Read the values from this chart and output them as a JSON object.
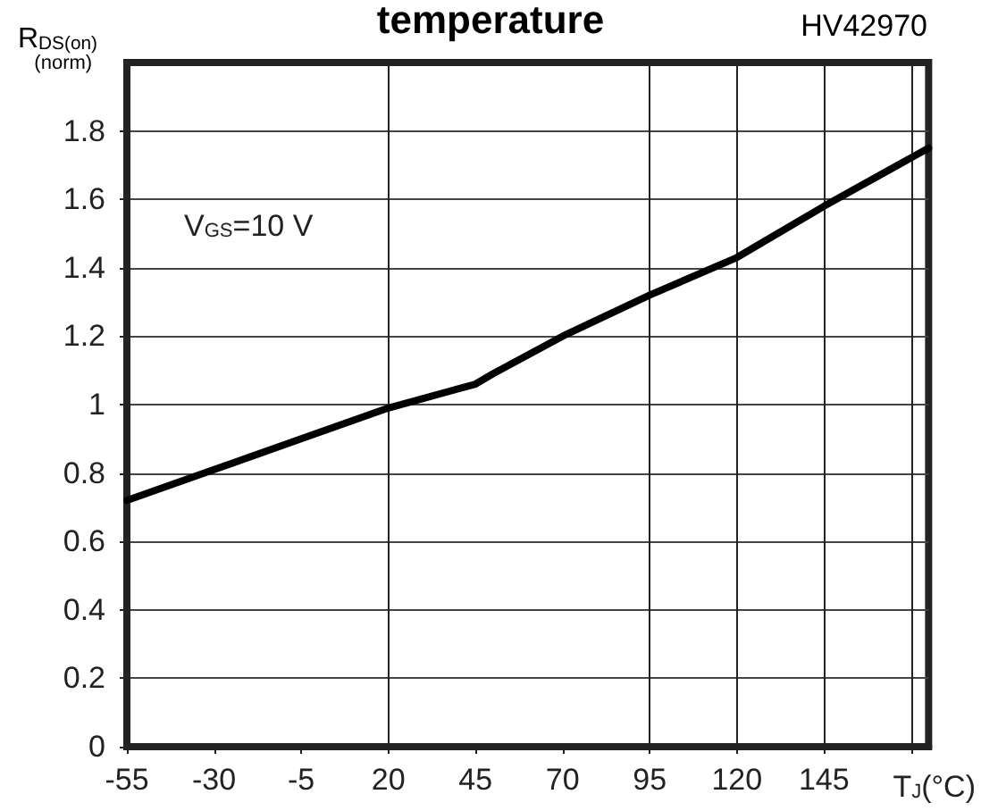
{
  "chart_data": {
    "type": "line",
    "title": "temperature",
    "xlabel": "T$_{J}$(°C)",
    "ylabel": "R$_{DS(on)}$\n(norm)",
    "annotations": [
      "V$_{GS}$=10 V",
      "HV42970"
    ],
    "x": [
      -55,
      -30,
      -5,
      20,
      45,
      50,
      70,
      95,
      120,
      125,
      145,
      175
    ],
    "series": [
      {
        "color": "#000000",
        "values": [
          0.72,
          0.81,
          0.9,
          0.99,
          1.06,
          1.09,
          1.2,
          1.32,
          1.43,
          1.46,
          1.58,
          1.75
        ]
      }
    ],
    "xlim": [
      -55,
      175
    ],
    "xticks": [
      -55,
      -30,
      -5,
      20,
      45,
      70,
      95,
      120,
      145,
      {
        "value": 170,
        "label": null
      }
    ],
    "ylim": [
      0,
      2
    ],
    "yticks": [
      0,
      0.2,
      0.4,
      0.6,
      0.8,
      1,
      1.2,
      1.4,
      1.6,
      1.8
    ],
    "grid": "y",
    "marker": "none",
    "line_style": "solid",
    "ref_lines": [
      {
        "axis": "x",
        "value": 20
      },
      {
        "axis": "x",
        "value": 95
      },
      {
        "axis": "x",
        "value": 120
      },
      {
        "axis": "x",
        "value": 145
      },
      {
        "axis": "x",
        "value": 170
      }
    ]
  }
}
